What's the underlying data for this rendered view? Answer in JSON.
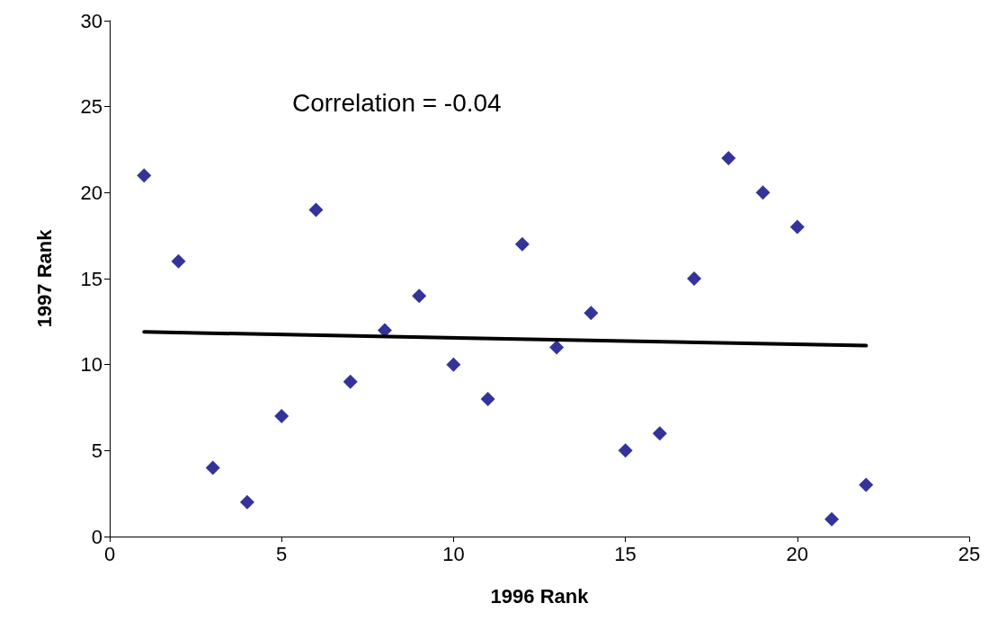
{
  "chart_data": {
    "type": "scatter",
    "xlabel": "1996 Rank",
    "ylabel": "1997 Rank",
    "annotations": [
      "Correlation = -0.04"
    ],
    "xlim": [
      0,
      25
    ],
    "xticks": [
      0,
      5,
      10,
      15,
      20,
      25
    ],
    "ylim": [
      0,
      30
    ],
    "yticks": [
      0,
      5,
      10,
      15,
      20,
      25,
      30
    ],
    "grid": false,
    "marker": "diamond",
    "series": [
      {
        "color": "#000080",
        "x": [
          1,
          2,
          3,
          4,
          5,
          6,
          7,
          8,
          9,
          10,
          11,
          12,
          13,
          14,
          15,
          16,
          17,
          18,
          19,
          20,
          21,
          22
        ],
        "values": [
          21,
          16,
          4,
          2,
          7,
          19,
          9,
          12,
          14,
          10,
          8,
          17,
          11,
          13,
          5,
          6,
          15,
          22,
          20,
          18,
          1,
          3
        ]
      },
      {
        "type": "line",
        "color": "#000000",
        "marker": "none",
        "x": [
          1,
          22
        ],
        "values": [
          11.9,
          11.1
        ]
      }
    ]
  }
}
